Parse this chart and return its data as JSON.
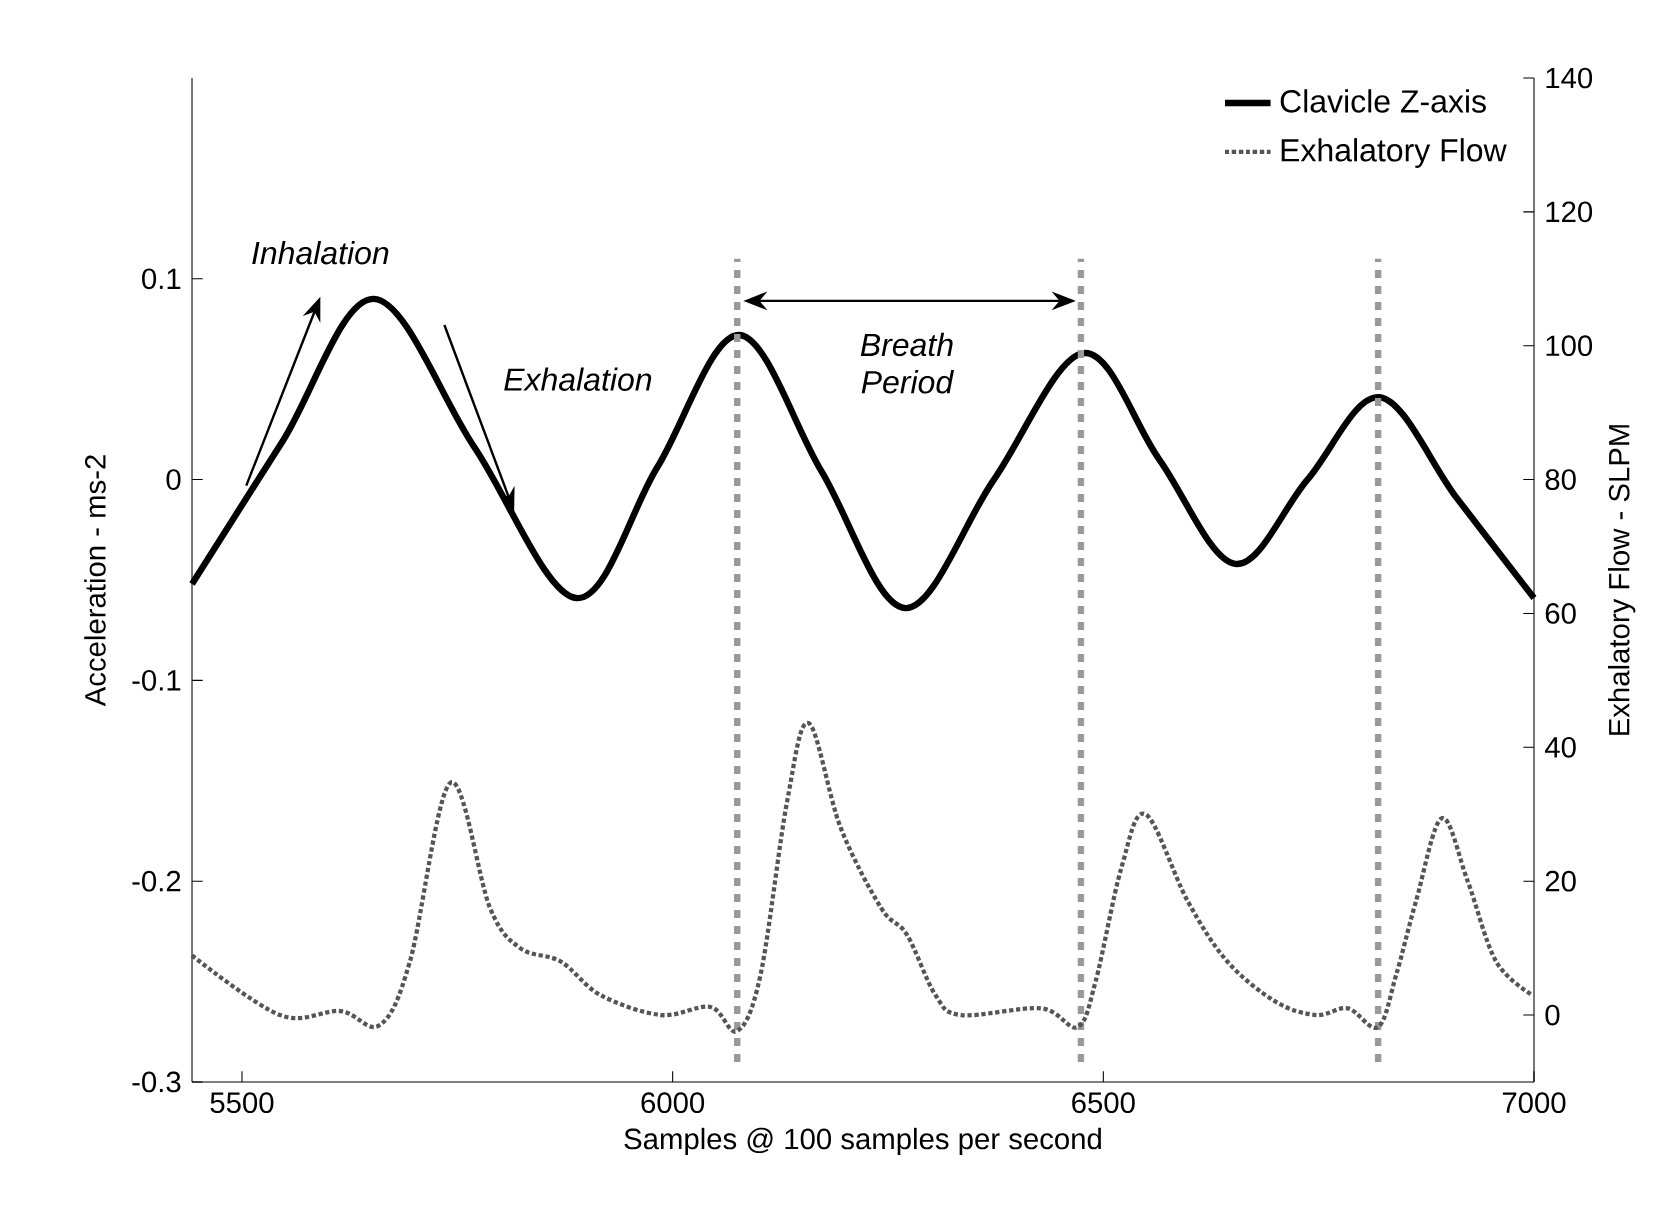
{
  "chart_data": {
    "type": "line",
    "xlabel": "Samples @ 100 samples per second",
    "ylabel": "Acceleration - ms-2",
    "y2label": "Exhalatory Flow - SLPM",
    "xlim": [
      5442,
      7000
    ],
    "xticks": [
      5500,
      6000,
      6500,
      7000
    ],
    "ylim": [
      -0.3,
      0.2
    ],
    "yticks": [
      -0.3,
      -0.2,
      -0.1,
      0,
      0.1
    ],
    "y2lim": [
      -10,
      140
    ],
    "y2ticks": [
      0,
      20,
      40,
      60,
      80,
      100,
      120,
      140
    ],
    "legend": "top right",
    "series": [
      {
        "name": "Clavicle Z-axis",
        "color": "#000000",
        "line_style": "solid",
        "x": [
          5442,
          5547,
          5653,
          5770,
          5888,
          5982,
          6077,
          6173,
          6270,
          6373,
          6477,
          6565,
          6653,
          6737,
          6821,
          6910,
          7000
        ],
        "values": [
          -0.052,
          0.019,
          0.09,
          0.016,
          -0.059,
          0.006,
          0.072,
          0.004,
          -0.064,
          0.0,
          0.063,
          0.01,
          -0.042,
          0.0,
          0.041,
          -0.009,
          -0.059
        ]
      },
      {
        "name": "Exhalatory Flow",
        "color": "#555555",
        "line_style": "dotted",
        "axis": "y2",
        "x": [
          5442,
          5544,
          5614,
          5660,
          5695,
          5742,
          5788,
          5823,
          5870,
          5916,
          5986,
          6044,
          6075,
          6102,
          6133,
          6158,
          6195,
          6242,
          6272,
          6305,
          6335,
          6428,
          6470,
          6491,
          6521,
          6549,
          6598,
          6644,
          6700,
          6747,
          6784,
          6819,
          6840,
          6863,
          6893,
          6923,
          6956,
          6998
        ],
        "values": [
          8.9,
          0,
          0.6,
          -1.5,
          8,
          34.7,
          16,
          10,
          8,
          3,
          0,
          1.2,
          -2.4,
          6,
          32,
          43.6,
          28,
          16,
          12,
          3,
          0,
          1,
          -1.8,
          5,
          22,
          30,
          17,
          8,
          2,
          0,
          1,
          -1.8,
          6,
          17,
          29.4,
          20,
          8,
          3
        ]
      }
    ],
    "ref_lines": [
      {
        "axis": "x",
        "value": 6075,
        "color": "#999999",
        "line_style": "dashed"
      },
      {
        "axis": "x",
        "value": 6474,
        "color": "#999999",
        "line_style": "dashed"
      },
      {
        "axis": "x",
        "value": 6819,
        "color": "#999999",
        "line_style": "dashed"
      }
    ],
    "annotations": [
      "Inhalation",
      "Exhalation",
      "Breath Period"
    ]
  }
}
